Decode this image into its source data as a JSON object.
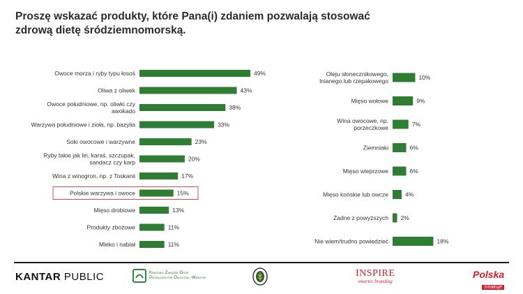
{
  "title": "Proszę wskazać produkty, które Pana(i) zdaniem pozwalają stosować zdrową dietę śródziemnomorską.",
  "colors": {
    "bar": "#2e7d32",
    "highlight": "#e04a4a"
  },
  "chart_data": [
    {
      "type": "bar",
      "orientation": "horizontal",
      "xlim": [
        0,
        49
      ],
      "grid": false,
      "highlighted_category": "Polskie warzywa i owoce",
      "categories": [
        [
          "Owoce morza i ryby typu łosoś"
        ],
        [
          "Oliwa z oliwek"
        ],
        [
          "Owoce południowe, np. oliwki czy",
          "awokado"
        ],
        [
          "Warzywa południowe i zioła, np. bazylia"
        ],
        [
          "Soki owocowe i warzywne"
        ],
        [
          "Ryby takie jak lin, karaś, szczupak,",
          "sandacz czy karp"
        ],
        [
          "Wina z winogron, np. z Toskanii"
        ],
        [
          "Polskie warzywa i owoce"
        ],
        [
          "Mięso drobiowe"
        ],
        [
          "Produkty zbożowe"
        ],
        [
          "Mleko i nabiał"
        ]
      ],
      "values": [
        49,
        43,
        38,
        33,
        23,
        20,
        17,
        15,
        13,
        11,
        11
      ],
      "value_labels": [
        "49%",
        "43%",
        "38%",
        "33%",
        "23%",
        "20%",
        "17%",
        "15%",
        "13%",
        "11%",
        "11%"
      ]
    },
    {
      "type": "bar",
      "orientation": "horizontal",
      "xlim": [
        0,
        49
      ],
      "grid": false,
      "categories": [
        [
          "Oleju słonecznikowego,",
          "lnianego lub rzepakowego"
        ],
        [
          "Mięso wołowe"
        ],
        [
          "Wina owocowe, np.",
          "porzeczkowe"
        ],
        [
          "Ziemniaki"
        ],
        [
          "Mięso wieprzowe"
        ],
        [
          "Mięso końskie lub owcze"
        ],
        [
          "Żadne z powyższych"
        ],
        [
          "Nie wiem/trudno powiedzieć"
        ]
      ],
      "values": [
        10,
        9,
        7,
        6,
        6,
        4,
        2,
        18
      ],
      "value_labels": [
        "10%",
        "9%",
        "7%",
        "6%",
        "6%",
        "4%",
        "2%",
        "18%"
      ]
    }
  ],
  "footer": {
    "kantar_bold": "KANTAR",
    "kantar_rest": " PUBLIC",
    "krajowy_lines": [
      "Krajowy Związek Grup",
      "Producentów Owoców i Warzyw"
    ],
    "inspire_name": "INSPIRE",
    "inspire_sub": "smarter branding",
    "polska_name": "Polska",
    "polska_sub": "smakuje"
  }
}
